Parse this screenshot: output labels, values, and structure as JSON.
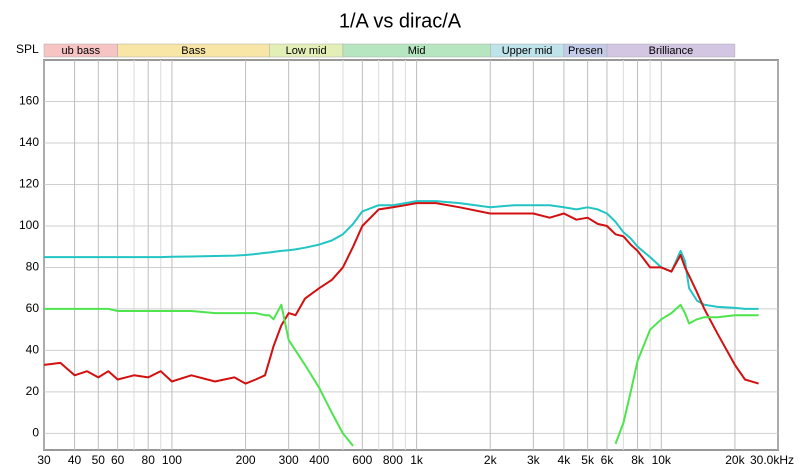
{
  "chart_data": {
    "type": "line",
    "title": "1/A vs dirac/A",
    "ylabel": "SPL",
    "xscale": "log",
    "xlim": [
      30,
      30000
    ],
    "ylim": [
      -8,
      180
    ],
    "yticks": [
      0,
      20,
      40,
      60,
      80,
      100,
      120,
      140,
      160
    ],
    "xticks": [
      30,
      40,
      50,
      60,
      80,
      100,
      200,
      300,
      400,
      600,
      800,
      {
        "value": 1000,
        "label": "1k"
      },
      {
        "value": 2000,
        "label": "2k"
      },
      {
        "value": 3000,
        "label": "3k"
      },
      {
        "value": 4000,
        "label": "4k"
      },
      {
        "value": 5000,
        "label": "5k"
      },
      {
        "value": 6000,
        "label": "6k"
      },
      {
        "value": 8000,
        "label": "8k"
      },
      {
        "value": 10000,
        "label": "10k"
      },
      {
        "value": 20000,
        "label": "20k"
      },
      {
        "value": 30000,
        "label": "30.0kHz"
      }
    ],
    "xgrid_minor": [
      70,
      90,
      500,
      700,
      900,
      7000,
      9000
    ],
    "grid": true,
    "bands": [
      {
        "label": "ub bass",
        "from": 30,
        "to": 60,
        "color": "#f7c4c4"
      },
      {
        "label": "Bass",
        "from": 60,
        "to": 250,
        "color": "#f8e6a6"
      },
      {
        "label": "Low mid",
        "from": 250,
        "to": 500,
        "color": "#e2efb6"
      },
      {
        "label": "Mid",
        "from": 500,
        "to": 2000,
        "color": "#b6e6bf"
      },
      {
        "label": "Upper mid",
        "from": 2000,
        "to": 4000,
        "color": "#bfe3ea"
      },
      {
        "label": "Presen",
        "from": 4000,
        "to": 6000,
        "color": "#c3cbe8"
      },
      {
        "label": "Brilliance",
        "from": 6000,
        "to": 20000,
        "color": "#d3c6e3"
      }
    ],
    "x": [
      30,
      35,
      40,
      45,
      50,
      55,
      60,
      70,
      80,
      90,
      100,
      120,
      150,
      180,
      200,
      220,
      240,
      250,
      260,
      280,
      300,
      320,
      350,
      400,
      450,
      500,
      550,
      600,
      700,
      800,
      900,
      1000,
      1200,
      1500,
      2000,
      2500,
      3000,
      3500,
      4000,
      4500,
      5000,
      5500,
      6000,
      6500,
      7000,
      7500,
      8000,
      9000,
      10000,
      11000,
      12000,
      12500,
      13000,
      14000,
      15000,
      17000,
      20000,
      22000,
      25000
    ],
    "series": [
      {
        "color": "#22c4c4",
        "values": [
          85,
          85,
          85,
          85,
          85,
          85,
          85,
          85,
          85,
          85,
          85.2,
          85.3,
          85.5,
          85.7,
          86,
          86.5,
          87,
          87.2,
          87.5,
          88,
          88.3,
          88.7,
          89.5,
          91,
          93,
          96,
          101,
          107,
          110,
          110,
          111,
          112,
          112,
          111,
          109,
          110,
          110,
          110,
          109,
          108,
          109,
          108,
          106,
          102,
          97,
          94,
          90,
          85,
          80,
          78,
          88,
          83,
          70,
          64,
          62,
          61,
          60.5,
          60,
          60
        ]
      },
      {
        "color": "#d21010",
        "values": [
          33,
          34,
          28,
          30,
          27,
          30,
          26,
          28,
          27,
          30,
          25,
          28,
          25,
          27,
          24,
          26,
          28,
          35,
          42,
          52,
          58,
          57,
          65,
          70,
          74,
          80,
          90,
          100,
          108,
          109,
          110,
          111,
          111,
          109,
          106,
          106,
          106,
          104,
          106,
          103,
          104,
          101,
          100,
          96,
          95,
          91,
          88,
          80,
          80,
          78,
          86,
          80,
          76,
          68,
          60,
          48,
          33,
          26,
          24
        ]
      },
      {
        "color": "#4ee44e",
        "values": [
          60,
          60,
          60,
          60,
          60,
          60,
          59,
          59,
          59,
          59,
          59,
          59,
          58,
          58,
          58,
          58,
          57,
          57,
          55,
          62,
          45,
          40,
          33,
          22,
          10,
          0,
          -6,
          null,
          null,
          null,
          null,
          null,
          null,
          null,
          null,
          null,
          null,
          null,
          null,
          null,
          null,
          null,
          null,
          -5,
          5,
          20,
          35,
          50,
          55,
          58,
          62,
          58,
          53,
          55,
          56,
          56,
          57,
          57,
          57
        ]
      }
    ]
  }
}
